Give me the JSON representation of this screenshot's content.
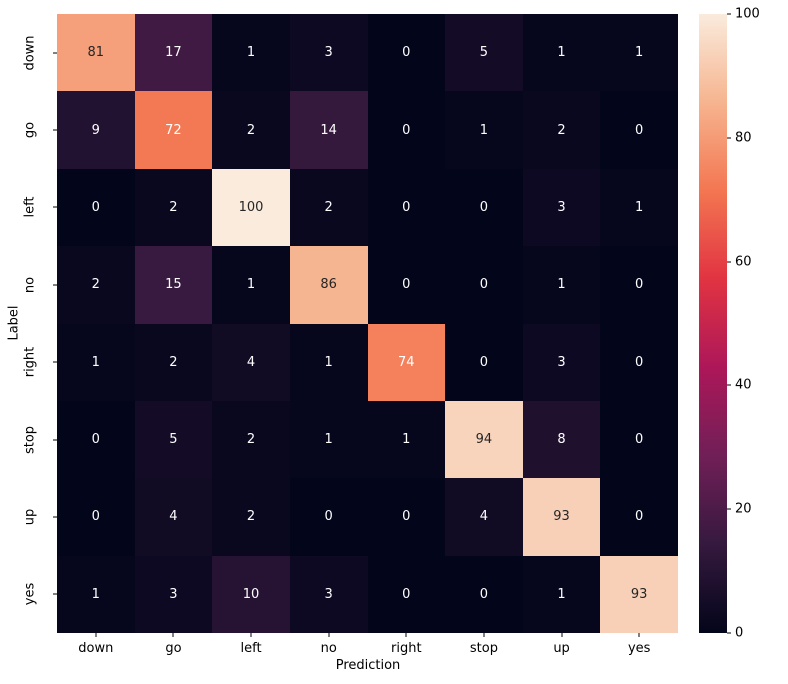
{
  "chart_data": {
    "type": "heatmap",
    "title": "",
    "xlabel": "Prediction",
    "ylabel": "Label",
    "x_categories": [
      "down",
      "go",
      "left",
      "no",
      "right",
      "stop",
      "up",
      "yes"
    ],
    "y_categories": [
      "down",
      "go",
      "left",
      "no",
      "right",
      "stop",
      "up",
      "yes"
    ],
    "matrix": [
      [
        81,
        17,
        1,
        3,
        0,
        5,
        1,
        1
      ],
      [
        9,
        72,
        2,
        14,
        0,
        1,
        2,
        0
      ],
      [
        0,
        2,
        100,
        2,
        0,
        0,
        3,
        1
      ],
      [
        2,
        15,
        1,
        86,
        0,
        0,
        1,
        0
      ],
      [
        1,
        2,
        4,
        1,
        74,
        0,
        3,
        0
      ],
      [
        0,
        5,
        2,
        1,
        1,
        94,
        8,
        0
      ],
      [
        0,
        4,
        2,
        0,
        0,
        4,
        93,
        0
      ],
      [
        1,
        3,
        10,
        3,
        0,
        0,
        1,
        93
      ]
    ],
    "vmin": 0,
    "vmax": 100,
    "colorbar_ticks": [
      0,
      20,
      40,
      60,
      80,
      100
    ],
    "colormap": "rocket",
    "colormap_stops": [
      [
        0.0,
        "#03051A"
      ],
      [
        0.143,
        "#35193E"
      ],
      [
        0.286,
        "#701F57"
      ],
      [
        0.429,
        "#AD1759"
      ],
      [
        0.571,
        "#E13342"
      ],
      [
        0.714,
        "#F37651"
      ],
      [
        0.857,
        "#F6B48F"
      ],
      [
        1.0,
        "#FAEBDD"
      ]
    ],
    "annotation_text_dark": "#262626",
    "annotation_text_light": "#ffffff",
    "legend": "colorbar-right",
    "grid": false
  }
}
